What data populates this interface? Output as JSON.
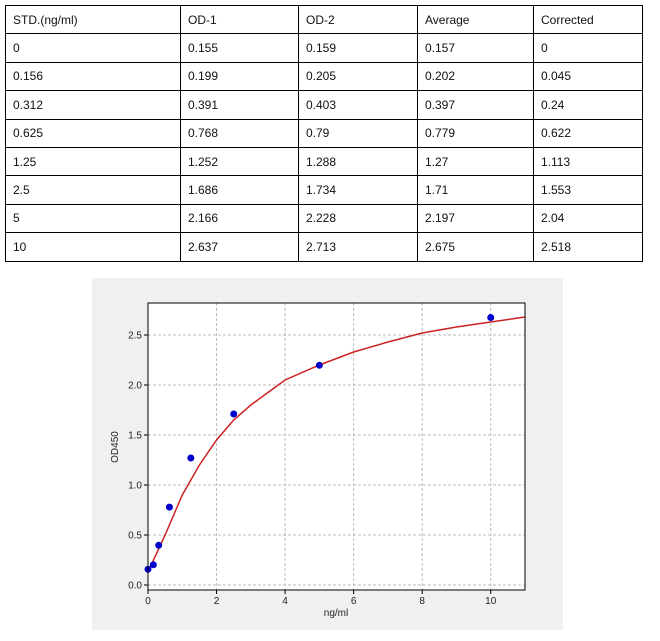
{
  "table": {
    "header": [
      "STD.(ng/ml)",
      "OD-1",
      "OD-2",
      "Average",
      "Corrected"
    ],
    "rows": [
      [
        "0",
        "0.155",
        "0.159",
        "0.157",
        "0"
      ],
      [
        "0.156",
        "0.199",
        "0.205",
        "0.202",
        "0.045"
      ],
      [
        "0.312",
        "0.391",
        "0.403",
        "0.397",
        "0.24"
      ],
      [
        "0.625",
        "0.768",
        "0.79",
        "0.779",
        "0.622"
      ],
      [
        "1.25",
        "1.252",
        "1.288",
        "1.27",
        "1.113"
      ],
      [
        "2.5",
        "1.686",
        "1.734",
        "1.71",
        "1.553"
      ],
      [
        "5",
        "2.166",
        "2.228",
        "2.197",
        "2.04"
      ],
      [
        "10",
        "2.637",
        "2.713",
        "2.675",
        "2.518"
      ]
    ]
  },
  "chart_data": {
    "type": "scatter",
    "x_label": "ng/ml",
    "y_label": "OD450",
    "x": [
      0,
      0.156,
      0.312,
      0.625,
      1.25,
      2.5,
      5,
      10
    ],
    "values": [
      0.157,
      0.202,
      0.397,
      0.779,
      1.27,
      1.71,
      2.197,
      2.675
    ],
    "color": "#0000cc",
    "fit": {
      "color": "#cc2222",
      "x": [
        0,
        0.5,
        1,
        1.5,
        2,
        2.5,
        3,
        4,
        5,
        6,
        7,
        8,
        9,
        10,
        11
      ],
      "values": [
        0.13,
        0.5,
        0.9,
        1.2,
        1.45,
        1.65,
        1.8,
        2.05,
        2.2,
        2.33,
        2.43,
        2.52,
        2.58,
        2.63,
        2.68
      ]
    },
    "xlim": [
      0,
      11
    ],
    "ylim": [
      -0.05,
      2.82
    ],
    "xticks": [
      0,
      2,
      4,
      6,
      8,
      10
    ],
    "yticks": [
      {
        "value": 0,
        "label": "0.0"
      },
      0.5,
      {
        "value": 1,
        "label": "1.0"
      },
      1.5,
      {
        "value": 2,
        "label": "2.0"
      },
      2.5
    ],
    "grid": true
  }
}
